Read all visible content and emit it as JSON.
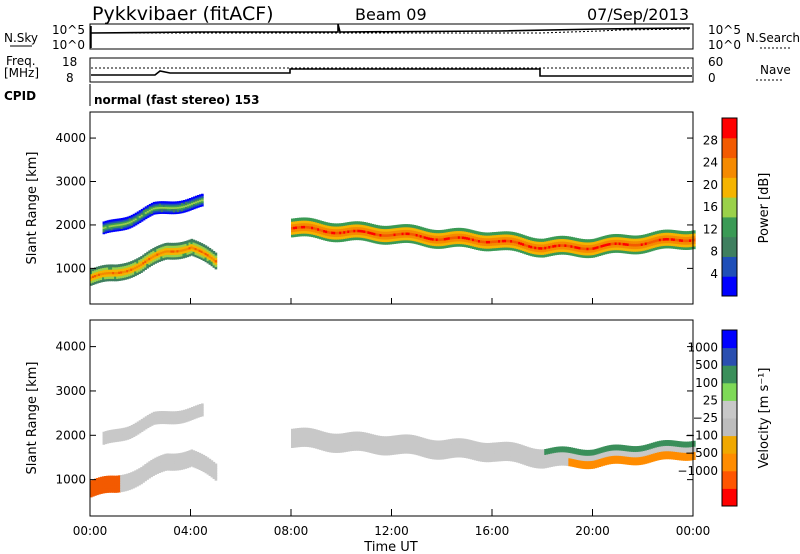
{
  "header": {
    "station": "Pykkvibaer (fitACF)",
    "beam": "Beam 09",
    "date": "07/Sep/2013"
  },
  "nsky": {
    "label": "N.Sky",
    "ticks": [
      "10^5",
      "10^0"
    ],
    "right_label": "N.Search",
    "right_ticks": [
      "10^5",
      "10^0"
    ]
  },
  "freq": {
    "label_line1": "Freq.",
    "label_line2": "[MHz]",
    "ticks": [
      "18",
      "8"
    ],
    "right_label": "Nave",
    "right_ticks": [
      "60",
      "0"
    ]
  },
  "cpid": {
    "label": "CPID",
    "text": "normal (fast stereo) 153"
  },
  "colors": {
    "power": [
      "#0000ff",
      "#1f4fb8",
      "#3f7f5f",
      "#3a9a55",
      "#9ad14a",
      "#f5b400",
      "#f58a00",
      "#f35a00",
      "#ff0000"
    ],
    "velocity": [
      "#ff0000",
      "#ff5500",
      "#ff8c00",
      "#f0a800",
      "#bdbdbd",
      "#c8c8c8",
      "#7ed957",
      "#3a8f5a",
      "#2a4fb0",
      "#0000ff"
    ]
  },
  "chart_data": [
    {
      "type": "heatmap",
      "quantity": "power",
      "ylabel": "Slant Range [km]",
      "ylim": [
        180,
        4600
      ],
      "y_ticks": [
        "1000",
        "2000",
        "3000",
        "4000"
      ],
      "xlim": [
        0,
        24
      ],
      "colorbar": {
        "label": "Power [dB]",
        "ticks": [
          "4",
          "8",
          "12",
          "16",
          "20",
          "24",
          "28"
        ],
        "range": [
          0,
          32
        ]
      },
      "bands": [
        {
          "name": "band-a",
          "x": [
            0.5,
            1.5,
            2.5,
            3.5,
            4.5
          ],
          "y_center": [
            1900,
            2100,
            2350,
            2450,
            2550
          ],
          "half_width": 120,
          "value": 8
        },
        {
          "name": "band-b",
          "x": [
            0.0,
            1.0,
            2.0,
            3.0,
            4.0,
            5.0
          ],
          "y_center": [
            800,
            900,
            1100,
            1400,
            1500,
            1150
          ],
          "half_width": 160,
          "value": 16
        },
        {
          "name": "band-c",
          "x": [
            8,
            10,
            12,
            14,
            16,
            18,
            20,
            22,
            24
          ],
          "y_center": [
            1950,
            1850,
            1800,
            1700,
            1650,
            1500,
            1500,
            1600,
            1700
          ],
          "half_width": 180,
          "value": 20
        }
      ]
    },
    {
      "type": "heatmap",
      "quantity": "velocity",
      "ylabel": "Slant Range [km]",
      "ylim": [
        180,
        4600
      ],
      "y_ticks": [
        "1000",
        "2000",
        "3000",
        "4000"
      ],
      "xlim": [
        0,
        24
      ],
      "x_ticks": [
        "00:00",
        "04:00",
        "08:00",
        "12:00",
        "16:00",
        "20:00",
        "00:00"
      ],
      "xlabel": "Time UT",
      "colorbar": {
        "label": "Velocity [m s⁻¹]",
        "ticks": [
          "1000",
          "500",
          "100",
          "25",
          "−25",
          "−100",
          "−500",
          "−1000"
        ]
      }
    }
  ]
}
